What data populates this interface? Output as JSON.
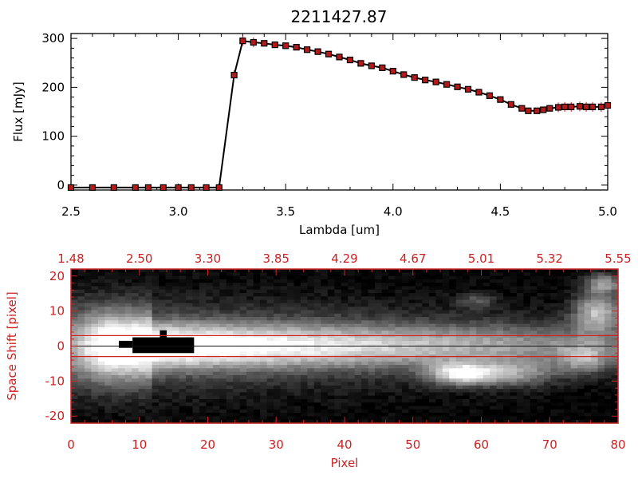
{
  "title": "2211427.87",
  "colors": {
    "black": "#000000",
    "red": "#cc2222",
    "marker_fill": "#b51a1a"
  },
  "chart_data": [
    {
      "type": "line",
      "title": "2211427.87",
      "xlabel": "Lambda [um]",
      "ylabel": "Flux [mJy]",
      "xlim": [
        2.5,
        5.0
      ],
      "ylim": [
        -10,
        310
      ],
      "x_ticks": [
        "2.5",
        "3.0",
        "3.5",
        "4.0",
        "4.5",
        "5.0"
      ],
      "y_ticks": [
        "0",
        "100",
        "200",
        "300"
      ],
      "series": [
        {
          "x": [
            2.5,
            2.6,
            2.7,
            2.8,
            2.86,
            2.93,
            3.0,
            3.06,
            3.13,
            3.19,
            3.26,
            3.3,
            3.35,
            3.4,
            3.45,
            3.5,
            3.55,
            3.6,
            3.65,
            3.7,
            3.75,
            3.8,
            3.85,
            3.9,
            3.95,
            4.0,
            4.05,
            4.1,
            4.15,
            4.2,
            4.25,
            4.3,
            4.35,
            4.4,
            4.45,
            4.5,
            4.55,
            4.6,
            4.63,
            4.67,
            4.7,
            4.73,
            4.77,
            4.8,
            4.83,
            4.87,
            4.9,
            4.93,
            4.97,
            5.0
          ],
          "y": [
            -5,
            -5,
            -5,
            -5,
            -5,
            -5,
            -5,
            -5,
            -5,
            -5,
            225,
            295,
            292,
            290,
            287,
            285,
            282,
            277,
            273,
            268,
            262,
            256,
            249,
            244,
            240,
            233,
            226,
            220,
            215,
            211,
            206,
            201,
            196,
            190,
            183,
            175,
            165,
            157,
            152,
            152,
            154,
            157,
            159,
            160,
            160,
            161,
            160,
            160,
            160,
            163
          ]
        }
      ]
    },
    {
      "type": "heatmap",
      "xlabel": "Pixel",
      "ylabel": "Space Shift [pixel]",
      "xlim": [
        0,
        80
      ],
      "ylim": [
        -22,
        22
      ],
      "x_ticks": [
        "0",
        "10",
        "20",
        "30",
        "40",
        "50",
        "60",
        "70",
        "80"
      ],
      "y_ticks": [
        "-20",
        "-10",
        "0",
        "10",
        "20"
      ],
      "top_ticks": [
        "1.48",
        "2.50",
        "3.30",
        "3.85",
        "4.29",
        "4.67",
        "5.01",
        "5.32",
        "5.55"
      ],
      "extraction_lines": [
        3,
        -3
      ]
    }
  ]
}
